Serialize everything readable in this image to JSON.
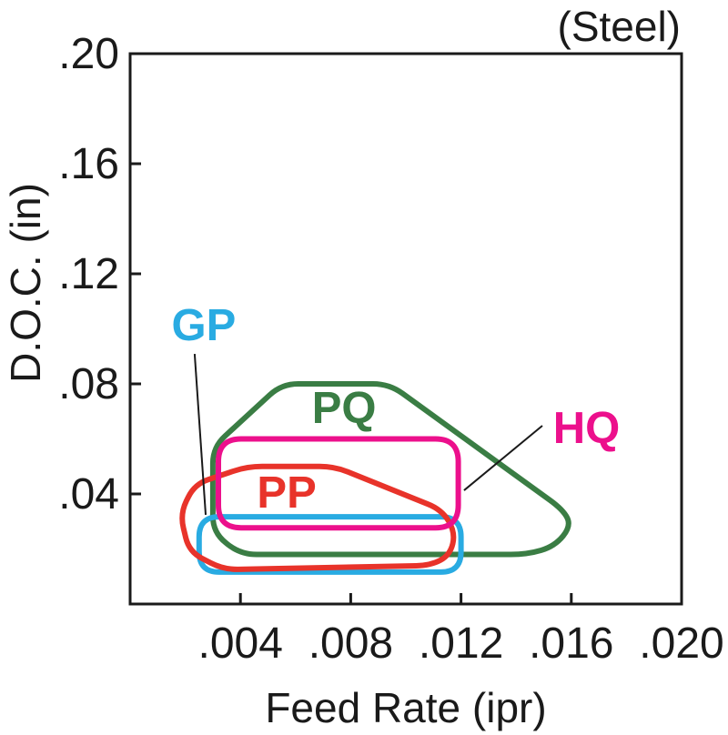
{
  "title": "(Steel)",
  "chart_data": {
    "type": "area",
    "subtype": "operating-region-map",
    "title": "(Steel)",
    "xlabel": "Feed Rate (ipr)",
    "ylabel": "D.O.C. (in)",
    "xlim": [
      0,
      0.02
    ],
    "ylim": [
      0,
      0.2
    ],
    "grid": false,
    "legend": "none",
    "axis_color": "#1a1a1a",
    "x_ticks": {
      "values": [
        0.004,
        0.008,
        0.012,
        0.016,
        0.02
      ],
      "labels": [
        ".004",
        ".008",
        ".012",
        ".016",
        ".020"
      ],
      "tick_marks_at": [
        0.004,
        0.008,
        0.012,
        0.016
      ]
    },
    "y_ticks": {
      "values": [
        0.04,
        0.08,
        0.12,
        0.16,
        0.2
      ],
      "labels": [
        ".04",
        ".08",
        ".12",
        ".16",
        ".20"
      ],
      "tick_marks_at": [
        0.04,
        0.08,
        0.12,
        0.16
      ]
    },
    "regions": [
      {
        "name": "PQ",
        "label": "PQ",
        "color": "#3a7d44",
        "corner_radius_px": 18,
        "points": [
          [
            0.003,
            0.057
          ],
          [
            0.0055,
            0.08
          ],
          [
            0.0094,
            0.08
          ],
          [
            0.0157,
            0.0343
          ],
          [
            0.016,
            0.0284
          ],
          [
            0.0154,
            0.021
          ],
          [
            0.0144,
            0.018
          ],
          [
            0.004,
            0.018
          ],
          [
            0.003,
            0.026
          ]
        ],
        "label_pos": [
          0.00776,
          0.0714
        ]
      },
      {
        "name": "GP",
        "label": "GP",
        "color": "#29abe2",
        "corner_radius_px": 22,
        "points": [
          [
            0.0025,
            0.0317
          ],
          [
            0.012,
            0.0317
          ],
          [
            0.012,
            0.0116
          ],
          [
            0.0025,
            0.0116
          ]
        ],
        "label_pos": [
          0.00267,
          0.1015
        ]
      },
      {
        "name": "PP",
        "label": "PP",
        "color": "#e8332a",
        "corner_radius_px": 16,
        "points": [
          [
            0.00426,
            0.05
          ],
          [
            0.0074,
            0.05
          ],
          [
            0.0113,
            0.0343
          ],
          [
            0.0118,
            0.026
          ],
          [
            0.0116,
            0.0178
          ],
          [
            0.0109,
            0.014
          ],
          [
            0.0034,
            0.0125
          ],
          [
            0.00214,
            0.019
          ],
          [
            0.00181,
            0.0327
          ],
          [
            0.00234,
            0.0436
          ]
        ],
        "label_pos": [
          0.00568,
          0.0407
        ]
      },
      {
        "name": "HQ",
        "label": "HQ",
        "color": "#ec108c",
        "corner_radius_px": 25,
        "points": [
          [
            0.0032,
            0.06
          ],
          [
            0.0119,
            0.06
          ],
          [
            0.0119,
            0.0277
          ],
          [
            0.0032,
            0.0277
          ]
        ],
        "label_pos": [
          0.01655,
          0.0642
        ]
      }
    ],
    "leaders": [
      {
        "for": "GP",
        "from": [
          0.00234,
          0.0909
        ],
        "to": [
          0.00274,
          0.0324
        ]
      },
      {
        "for": "HQ",
        "from": [
          0.01495,
          0.0648
        ],
        "to": [
          0.01211,
          0.0413
        ]
      }
    ]
  }
}
